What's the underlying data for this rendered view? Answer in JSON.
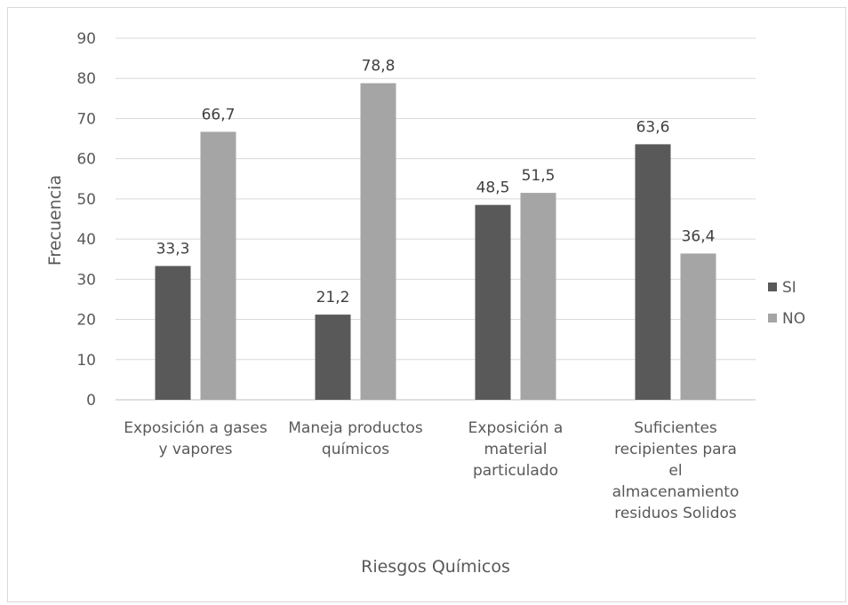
{
  "chart_data": {
    "type": "bar",
    "xlabel": "Riesgos Químicos",
    "ylabel": "Frecuencia",
    "ylim": [
      0,
      90
    ],
    "yticks": [
      0,
      10,
      20,
      30,
      40,
      50,
      60,
      70,
      80,
      90
    ],
    "grid": true,
    "legend_position": "right",
    "categories": [
      [
        "Exposición a gases",
        "y vapores"
      ],
      [
        "Maneja productos",
        "químicos"
      ],
      [
        "Exposición a",
        "material",
        "particulado"
      ],
      [
        "Suficientes",
        "recipientes para",
        "el",
        "almacenamiento",
        "residuos Solidos"
      ]
    ],
    "series": [
      {
        "name": "SI",
        "color": "#595959",
        "values": [
          33.3,
          21.2,
          48.5,
          63.6
        ],
        "labels": [
          "33,3",
          "21,2",
          "48,5",
          "63,6"
        ]
      },
      {
        "name": "NO",
        "color": "#a5a5a5",
        "values": [
          66.7,
          78.8,
          51.5,
          36.4
        ],
        "labels": [
          "66,7",
          "78,8",
          "51,5",
          "36,4"
        ]
      }
    ]
  }
}
